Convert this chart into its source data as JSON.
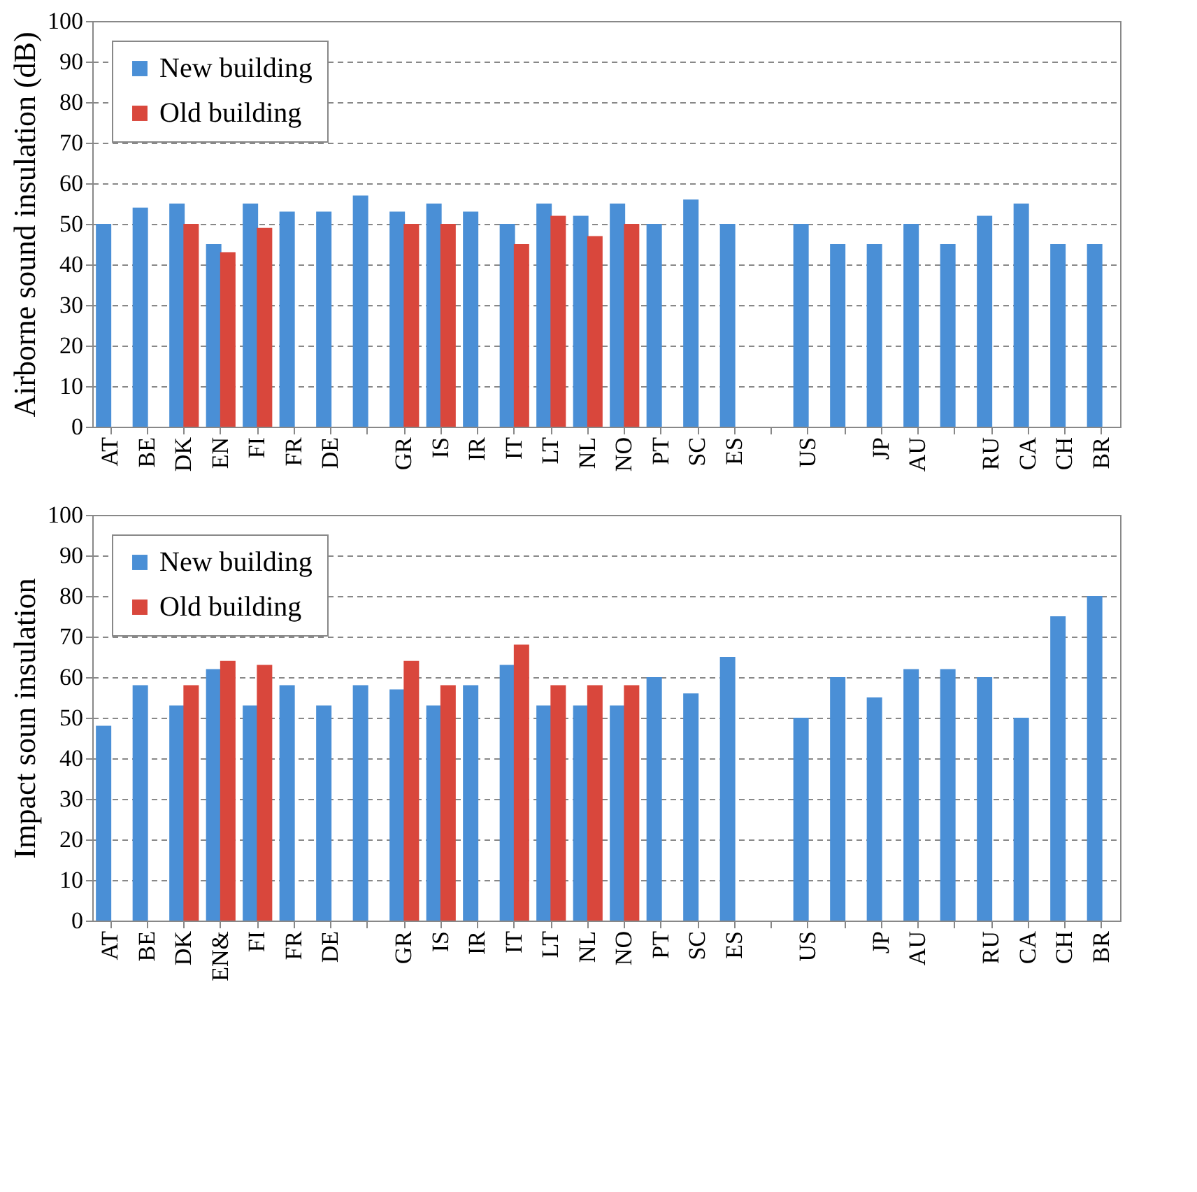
{
  "chart_data": [
    {
      "type": "bar",
      "ylabel": "Airborne sound insulation (dB)",
      "categories": [
        "AT",
        "BE",
        "DK",
        "EN",
        "FI",
        "FR",
        "DE",
        null,
        "GR",
        "IS",
        "IR",
        "IT",
        "LT",
        "NL",
        "NO",
        "PT",
        "SC",
        "ES",
        null,
        "US",
        null,
        "JP",
        "AU",
        null,
        "RU",
        "CA",
        "CH",
        "BR"
      ],
      "series": [
        {
          "name": "New building",
          "color": "#4a8fd6",
          "values": [
            50,
            54,
            55,
            45,
            55,
            53,
            53,
            57,
            53,
            55,
            53,
            50,
            55,
            52,
            55,
            50,
            56,
            50,
            null,
            50,
            45,
            45,
            50,
            45,
            52,
            55,
            45,
            45
          ]
        },
        {
          "name": "Old building",
          "color": "#d9473c",
          "values": [
            null,
            null,
            50,
            43,
            49,
            null,
            null,
            null,
            50,
            50,
            null,
            45,
            52,
            47,
            50,
            null,
            null,
            null,
            null,
            null,
            null,
            null,
            null,
            null,
            null,
            null,
            null,
            null
          ]
        }
      ],
      "ylim": [
        0,
        100
      ],
      "yticks": [
        0,
        10,
        20,
        30,
        40,
        50,
        60,
        70,
        80,
        90,
        100
      ],
      "grid": "y",
      "legend": "top left"
    },
    {
      "type": "bar",
      "ylabel": "Impact soun insulation",
      "categories": [
        "AT",
        "BE",
        "DK",
        "EN&",
        "FI",
        "FR",
        "DE",
        null,
        "GR",
        "IS",
        "IR",
        "IT",
        "LT",
        "NL",
        "NO",
        "PT",
        "SC",
        "ES",
        null,
        "US",
        null,
        "JP",
        "AU",
        null,
        "RU",
        "CA",
        "CH",
        "BR"
      ],
      "series": [
        {
          "name": "New building",
          "color": "#4a8fd6",
          "values": [
            48,
            58,
            53,
            62,
            53,
            58,
            53,
            58,
            57,
            53,
            58,
            63,
            53,
            53,
            53,
            60,
            56,
            65,
            null,
            50,
            60,
            55,
            62,
            62,
            60,
            50,
            75,
            80
          ]
        },
        {
          "name": "Old building",
          "color": "#d9473c",
          "values": [
            null,
            null,
            58,
            64,
            63,
            null,
            null,
            null,
            64,
            58,
            null,
            68,
            58,
            58,
            58,
            null,
            null,
            null,
            null,
            null,
            null,
            null,
            null,
            null,
            null,
            null,
            null,
            null
          ]
        }
      ],
      "ylim": [
        0,
        100
      ],
      "yticks": [
        0,
        10,
        20,
        30,
        40,
        50,
        60,
        70,
        80,
        90,
        100
      ],
      "grid": "y",
      "legend": "top left"
    }
  ]
}
